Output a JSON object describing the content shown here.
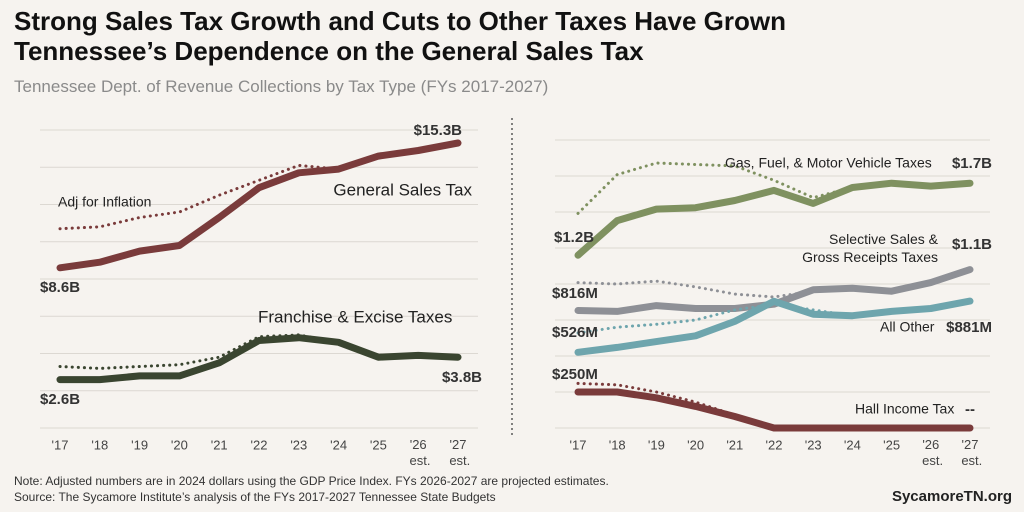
{
  "title": "Strong Sales Tax Growth and Cuts to Other Taxes Have Grown Tennessee’s Dependence on the General Sales Tax",
  "subtitle": "Tennessee Dept. of Revenue Collections by Tax Type (FYs 2017-2027)",
  "note": "Note: Adjusted numbers are in 2024 dollars using the GDP Price Index. FYs 2026-2027 are projected estimates.",
  "source": "Source: The Sycamore Institute’s analysis of the FYs 2017-2027 Tennessee State Budgets",
  "brand": "SycamoreTN.org",
  "chart_data": [
    {
      "type": "line",
      "categories": [
        "'17",
        "'18",
        "'19",
        "'20",
        "'21",
        "'22",
        "'23",
        "'24",
        "'25",
        "'26 est.",
        "'27 est."
      ],
      "ylim": [
        0,
        16
      ],
      "gridlines": [
        0,
        2,
        4,
        6,
        8,
        10,
        12,
        14,
        16
      ],
      "series": [
        {
          "name": "Adj for Inflation",
          "color": "#7a3b3b",
          "style": "dotted",
          "values": [
            10.7,
            10.8,
            11.3,
            11.6,
            12.5,
            13.3,
            14.1,
            13.9,
            null,
            null,
            null
          ]
        },
        {
          "name": "General Sales Tax",
          "color": "#7a3b3b",
          "style": "solid",
          "values": [
            8.6,
            8.9,
            9.5,
            9.8,
            11.3,
            12.9,
            13.7,
            13.9,
            14.6,
            14.9,
            15.3
          ],
          "value_labels": [
            "$8.6B",
            null,
            null,
            null,
            null,
            null,
            null,
            null,
            null,
            null,
            "$15.3B"
          ]
        },
        {
          "color": "#3a4530",
          "style": "dotted",
          "values": [
            3.3,
            3.2,
            3.3,
            3.4,
            3.8,
            4.9,
            5.0,
            4.6,
            null,
            null,
            null
          ]
        },
        {
          "name": "Franchise & Excise Taxes",
          "color": "#3a4530",
          "style": "solid",
          "values": [
            2.6,
            2.6,
            2.8,
            2.8,
            3.5,
            4.7,
            4.85,
            4.6,
            3.8,
            3.9,
            3.8
          ],
          "value_labels": [
            "$2.6B",
            null,
            null,
            null,
            null,
            null,
            null,
            null,
            null,
            null,
            "$3.8B"
          ]
        }
      ]
    },
    {
      "type": "line",
      "categories": [
        "'17",
        "'18",
        "'19",
        "'20",
        "'21",
        "'22",
        "'23",
        "'24",
        "'25",
        "'26 est.",
        "'27 est."
      ],
      "ylim": [
        0,
        2
      ],
      "gridlines": [
        0,
        0.25,
        0.5,
        0.75,
        1,
        1.25,
        1.5,
        1.75,
        2
      ],
      "series": [
        {
          "color": "#7f9160",
          "style": "dotted",
          "values": [
            1.49,
            1.76,
            1.84,
            1.83,
            1.82,
            1.72,
            1.6,
            1.67,
            null,
            null,
            null
          ]
        },
        {
          "name": "Gas, Fuel, & Motor Vehicle Taxes",
          "color": "#7f9160",
          "style": "solid",
          "values": [
            1.2,
            1.44,
            1.52,
            1.53,
            1.58,
            1.65,
            1.56,
            1.67,
            1.7,
            1.68,
            1.7
          ],
          "value_labels": [
            "$1.2B",
            null,
            null,
            null,
            null,
            null,
            null,
            null,
            null,
            null,
            "$1.7B"
          ]
        },
        {
          "color": "#8e9096",
          "style": "dotted",
          "values": [
            1.01,
            1.0,
            1.02,
            0.98,
            0.93,
            0.91,
            0.95,
            0.97,
            null,
            null,
            null
          ]
        },
        {
          "name": "Selective Sales & Gross Receipts Taxes",
          "color": "#8e9096",
          "style": "solid",
          "values": [
            0.816,
            0.81,
            0.85,
            0.83,
            0.83,
            0.86,
            0.96,
            0.97,
            0.95,
            1.01,
            1.1
          ],
          "value_labels": [
            "$816M",
            null,
            null,
            null,
            null,
            null,
            null,
            null,
            null,
            null,
            "$1.1B"
          ]
        },
        {
          "color": "#6ea5ad",
          "style": "dotted",
          "values": [
            0.66,
            0.7,
            0.72,
            0.75,
            0.82,
            0.86,
            0.82,
            0.78,
            null,
            null,
            null
          ]
        },
        {
          "name": "All Other",
          "color": "#6ea5ad",
          "style": "solid",
          "values": [
            0.526,
            0.56,
            0.6,
            0.64,
            0.74,
            0.88,
            0.79,
            0.78,
            0.81,
            0.83,
            0.881
          ],
          "value_labels": [
            "$526M",
            null,
            null,
            null,
            null,
            null,
            null,
            null,
            null,
            null,
            "$881M"
          ]
        },
        {
          "color": "#7a3b3b",
          "style": "dotted",
          "values": [
            0.31,
            0.3,
            0.25,
            0.18,
            0.09,
            0,
            0,
            0,
            null,
            null,
            null
          ]
        },
        {
          "name": "Hall Income Tax",
          "color": "#7a3b3b",
          "style": "solid",
          "values": [
            0.25,
            0.25,
            0.21,
            0.15,
            0.08,
            0,
            0,
            0,
            0,
            0,
            0
          ],
          "value_labels": [
            "$250M",
            null,
            null,
            null,
            null,
            null,
            null,
            null,
            null,
            null,
            "--"
          ]
        }
      ]
    }
  ]
}
